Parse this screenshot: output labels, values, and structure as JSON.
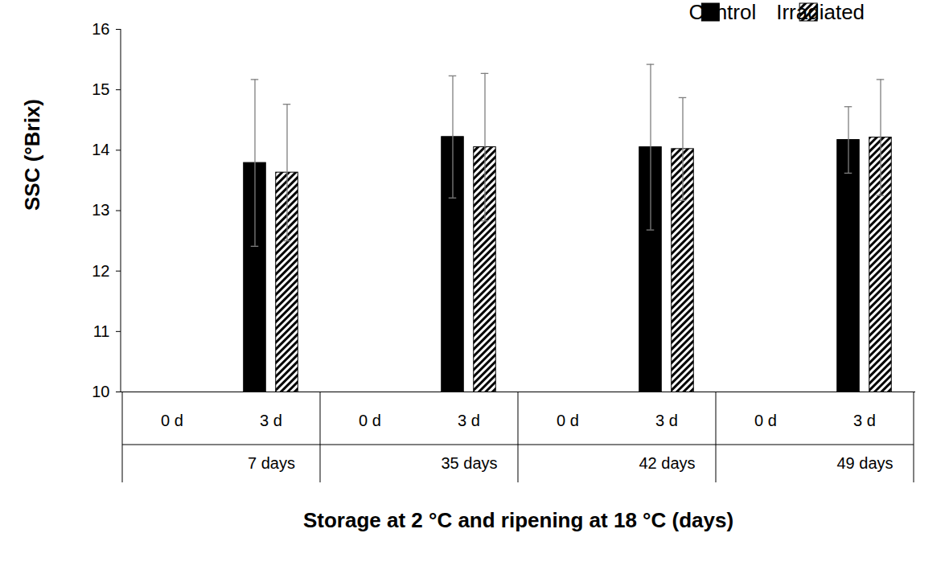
{
  "chart_data": {
    "type": "bar",
    "categories": [
      "0 d",
      "3 d",
      "0 d",
      "3 d",
      "0 d",
      "3 d",
      "0 d",
      "3 d"
    ],
    "category_groups": [
      "7 days",
      "35 days",
      "42 days",
      "49 days"
    ],
    "xlabel": "Storage at 2 °C and ripening at 18 °C (days)",
    "ylabel": "SSC (°Brix)",
    "ylim": [
      10,
      16
    ],
    "yticks": [
      10,
      11,
      12,
      13,
      14,
      15,
      16
    ],
    "grid": false,
    "legend": "top-right",
    "series": [
      {
        "name": "Control",
        "color": "#000000",
        "values": [
          null,
          13.79,
          null,
          14.22,
          null,
          14.05,
          null,
          14.17
        ],
        "errors": [
          null,
          1.38,
          null,
          1.01,
          null,
          1.37,
          null,
          0.55
        ]
      },
      {
        "name": "Irradiated",
        "color": "#000000",
        "values": [
          null,
          13.63,
          null,
          14.05,
          null,
          14.02,
          null,
          14.21
        ],
        "errors": [
          null,
          1.13,
          null,
          1.22,
          null,
          0.85,
          null,
          0.96
        ]
      }
    ]
  }
}
